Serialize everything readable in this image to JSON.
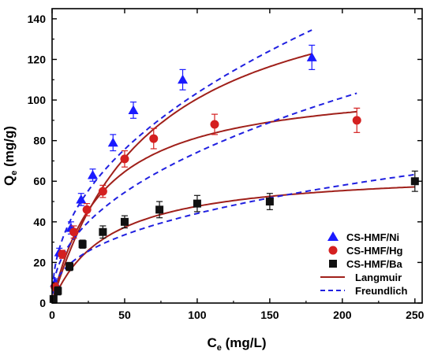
{
  "chart_data": {
    "type": "scatter",
    "xlabel": {
      "main": "C",
      "sub": "e",
      "unit": " (mg/L)"
    },
    "ylabel": {
      "main": "Q",
      "sub": "e",
      "unit": " (mg/g)"
    },
    "xlim": [
      0,
      255
    ],
    "ylim": [
      0,
      145
    ],
    "x_ticks": [
      0,
      50,
      100,
      150,
      200,
      250
    ],
    "y_ticks": [
      0,
      20,
      40,
      60,
      80,
      100,
      120,
      140
    ],
    "grid": false,
    "legend_position": "bottom-right",
    "series": [
      {
        "name": "CS-HMF/Ni",
        "marker": "triangle",
        "color": "#1a1aff",
        "x": [
          2,
          5,
          13,
          20,
          28,
          42,
          56,
          90,
          179
        ],
        "y": [
          10,
          25,
          37,
          51,
          63,
          79,
          95,
          110,
          121
        ],
        "err": [
          2,
          2,
          3,
          3,
          3,
          4,
          4,
          5,
          6
        ]
      },
      {
        "name": "CS-HMF/Hg",
        "marker": "circle",
        "color": "#d42020",
        "x": [
          2,
          7,
          15,
          24,
          35,
          50,
          70,
          112,
          210
        ],
        "y": [
          8,
          24,
          35,
          46,
          55,
          71,
          81,
          88,
          90
        ],
        "err": [
          2,
          2,
          3,
          3,
          3,
          4,
          5,
          5,
          6
        ]
      },
      {
        "name": "CS-HMF/Ba",
        "marker": "square",
        "color": "#111111",
        "x": [
          1,
          4,
          12,
          21,
          35,
          50,
          74,
          100,
          150,
          250
        ],
        "y": [
          2,
          6,
          18,
          29,
          35,
          40,
          46,
          49,
          50,
          60
        ],
        "err": [
          1,
          2,
          2,
          2,
          3,
          3,
          4,
          4,
          4,
          5
        ]
      }
    ],
    "fits": [
      {
        "name": "Langmuir",
        "style": "solid",
        "color": "#a0201a",
        "curves": [
          {
            "model": "langmuir",
            "qmax": 170,
            "kl": 0.0145,
            "xmax": 179
          },
          {
            "model": "langmuir",
            "qmax": 110,
            "kl": 0.0285,
            "xmax": 210
          },
          {
            "model": "langmuir",
            "qmax": 66,
            "kl": 0.026,
            "xmax": 250
          }
        ]
      },
      {
        "name": "Freundlich",
        "style": "dashed",
        "color": "#2020e0",
        "curves": [
          {
            "model": "freundlich",
            "kf": 13,
            "n": 2.22,
            "xmax": 179
          },
          {
            "model": "freundlich",
            "kf": 9.5,
            "n": 2.24,
            "xmax": 210
          },
          {
            "model": "freundlich",
            "kf": 7.2,
            "n": 2.54,
            "xmax": 250
          }
        ]
      }
    ]
  }
}
